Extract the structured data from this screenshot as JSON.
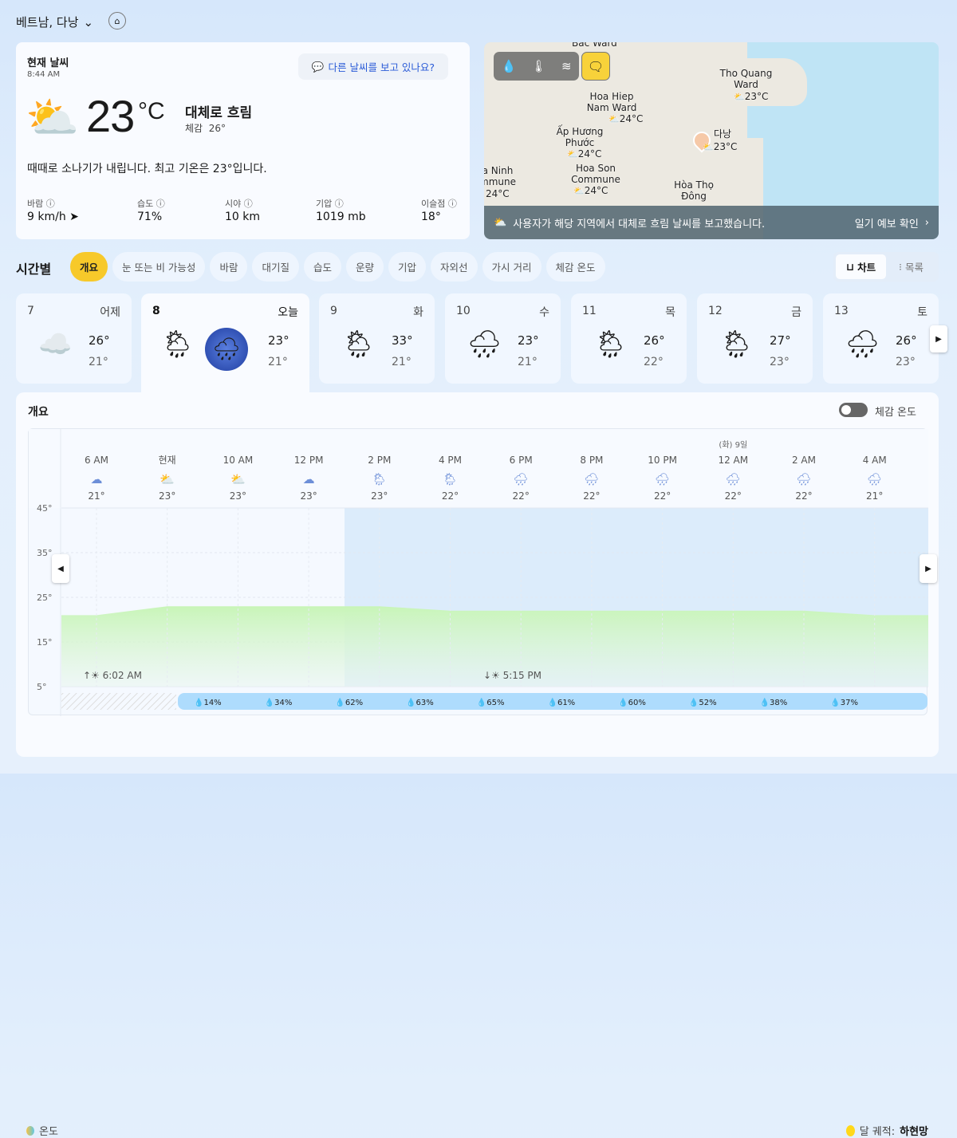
{
  "header": {
    "location": "베트남, 다낭",
    "chevron_icon": "chevron-down-icon",
    "home_icon": "home-icon"
  },
  "current": {
    "title": "현재 날씨",
    "time": "8:44 AM",
    "ask_label": "다른 날씨를 보고 있나요?",
    "temp": "23",
    "unit": "°C",
    "condition": "대체로 흐림",
    "feels_label": "체감",
    "feels_value": "26°",
    "description": "때때로 소나기가 내립니다. 최고 기온은 23°입니다.",
    "stats": [
      {
        "label": "바람",
        "value": "9 km/h"
      },
      {
        "label": "습도",
        "value": "71%"
      },
      {
        "label": "시야",
        "value": "10 km"
      },
      {
        "label": "기압",
        "value": "1019 mb"
      },
      {
        "label": "이슬점",
        "value": "18°"
      }
    ]
  },
  "map": {
    "labels": [
      {
        "name": "Bac Ward",
        "temp": ""
      },
      {
        "name": "Tho Quang Ward",
        "temp": "23°C"
      },
      {
        "name": "Hoa Hiep Nam Ward",
        "temp": "24°C"
      },
      {
        "name": "Ấp Hương Phước",
        "temp": "24°C"
      },
      {
        "name": "다낭",
        "temp": "23°C"
      },
      {
        "name": "Hoa Son Commune",
        "temp": "24°C"
      },
      {
        "name": "a Ninh mmune",
        "temp": "24°C"
      },
      {
        "name": "Hòa Thọ Đông",
        "temp": ""
      }
    ],
    "report": "사용자가 해당 지역에서 대체로 흐림 날씨를 보고했습니다.",
    "forecast_link": "일기 예보 확인"
  },
  "hourly": {
    "title": "시간별",
    "tabs": [
      "개요",
      "눈 또는 비 가능성",
      "바람",
      "대기질",
      "습도",
      "운량",
      "기압",
      "자외선",
      "가시 거리",
      "체감 온도"
    ],
    "active_tab": 0,
    "view": {
      "chart": "차트",
      "list": "목록",
      "active": "chart"
    }
  },
  "days": [
    {
      "num": "7",
      "name": "어제",
      "hi": "26°",
      "lo": "21°",
      "icon": "☁️"
    },
    {
      "num": "8",
      "name": "오늘",
      "hi": "23°",
      "lo": "21°",
      "icon": "🌦"
    },
    {
      "num": "9",
      "name": "화",
      "hi": "33°",
      "lo": "21°",
      "icon": "🌦"
    },
    {
      "num": "10",
      "name": "수",
      "hi": "23°",
      "lo": "21°",
      "icon": "🌧"
    },
    {
      "num": "11",
      "name": "목",
      "hi": "26°",
      "lo": "22°",
      "icon": "🌦"
    },
    {
      "num": "12",
      "name": "금",
      "hi": "27°",
      "lo": "23°",
      "icon": "🌦"
    },
    {
      "num": "13",
      "name": "토",
      "hi": "26°",
      "lo": "23°",
      "icon": "🌧"
    }
  ],
  "overview": {
    "title": "개요",
    "toggle_label": "체감 온도",
    "toggle_on": false,
    "sunrise": "6:02 AM",
    "sunset": "5:15 PM",
    "legend_temp": "온도",
    "moon_label": "달 궤적:",
    "moon_phase": "하현망"
  },
  "chart_data": {
    "type": "area",
    "date_marker": "(화) 9일",
    "date_marker_index": 9,
    "categories": [
      "6 AM",
      "현재",
      "10 AM",
      "12 PM",
      "2 PM",
      "4 PM",
      "6 PM",
      "8 PM",
      "10 PM",
      "12 AM",
      "2 AM",
      "4 AM"
    ],
    "temps": [
      21,
      23,
      23,
      23,
      23,
      22,
      22,
      22,
      22,
      22,
      22,
      21
    ],
    "temp_labels": [
      "21°",
      "23°",
      "23°",
      "23°",
      "23°",
      "22°",
      "22°",
      "22°",
      "22°",
      "22°",
      "22°",
      "21°"
    ],
    "icons": [
      "cloudy",
      "partly-cloudy",
      "partly-cloudy",
      "cloudy",
      "rain-sun",
      "rain-sun",
      "night-rain",
      "night-rain",
      "night-rain",
      "night-rain",
      "night-rain",
      "night-rain"
    ],
    "yticks": [
      "45°",
      "35°",
      "25°",
      "15°",
      "5°"
    ],
    "ylim": [
      5,
      45
    ],
    "precip": [
      "14%",
      "34%",
      "62%",
      "63%",
      "65%",
      "61%",
      "60%",
      "52%",
      "38%",
      "37%"
    ],
    "colors": {
      "temp_area": "#c9f2be",
      "rain_zone": "#dcecfb",
      "precip_bar": "#aedcfd"
    }
  }
}
